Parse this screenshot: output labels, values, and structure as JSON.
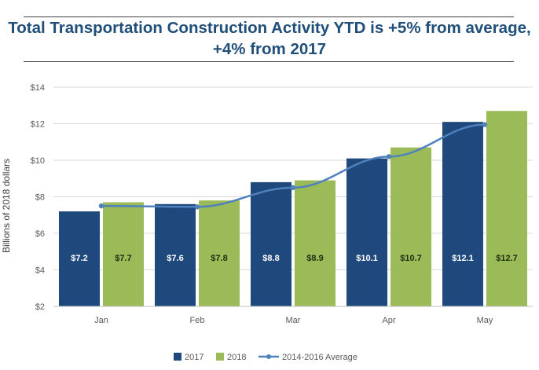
{
  "title_lines": [
    "Total Transportation Construction Activity YTD is +5% from average,",
    "+4% from 2017"
  ],
  "colors": {
    "series_2017": "#1f497d",
    "series_2018": "#9bbb59",
    "series_avg": "#4f81bd",
    "title": "#1f4e79",
    "grid": "#d9d9d9",
    "axis_text": "#595959"
  },
  "chart_data": {
    "type": "bar",
    "title": "Total Transportation Construction Activity YTD is +5% from average, +4% from 2017",
    "xlabel": "",
    "ylabel": "Billions of 2018 dollars",
    "ylim": [
      2,
      14
    ],
    "yticks": [
      2,
      4,
      6,
      8,
      10,
      12,
      14
    ],
    "ytick_labels": [
      "$2",
      "$4",
      "$6",
      "$8",
      "$10",
      "$12",
      "$14"
    ],
    "categories": [
      "Jan",
      "Feb",
      "Mar",
      "Apr",
      "May"
    ],
    "grid": true,
    "legend_position": "bottom",
    "series": [
      {
        "name": "2017",
        "type": "bar",
        "values": [
          7.2,
          7.6,
          8.8,
          10.1,
          12.1
        ],
        "labels": [
          "$7.2",
          "$7.6",
          "$8.8",
          "$10.1",
          "$12.1"
        ]
      },
      {
        "name": "2018",
        "type": "bar",
        "values": [
          7.7,
          7.8,
          8.9,
          10.7,
          12.7
        ],
        "labels": [
          "$7.7",
          "$7.8",
          "$8.9",
          "$10.7",
          "$12.7"
        ]
      },
      {
        "name": "2014-2016 Average",
        "type": "line",
        "values": [
          7.5,
          7.45,
          8.5,
          10.2,
          11.95
        ]
      }
    ]
  }
}
